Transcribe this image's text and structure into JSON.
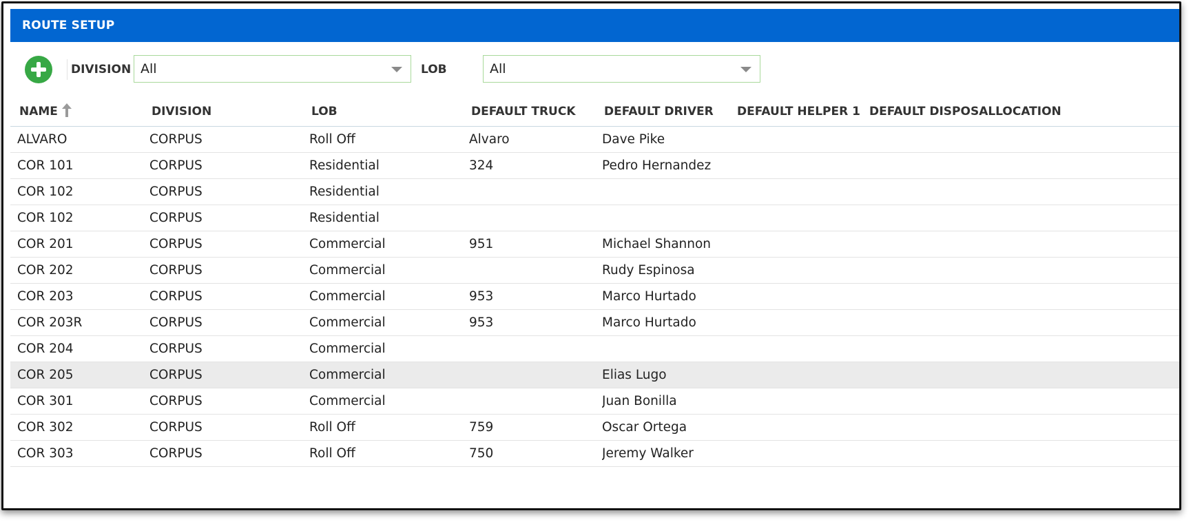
{
  "window": {
    "title": "ROUTE SETUP"
  },
  "toolbar": {
    "add_icon": "plus-circle-icon",
    "division_label": "DIVISION",
    "division_value": "All",
    "lob_label": "LOB",
    "lob_value": "All"
  },
  "colors": {
    "titlebar": "#0266d1",
    "add_button": "#37a845",
    "select_border": "#a8d99a",
    "selected_row": "#ebebeb"
  },
  "table": {
    "columns": [
      "NAME",
      "DIVISION",
      "LOB",
      "DEFAULT TRUCK",
      "DEFAULT DRIVER",
      "DEFAULT HELPER 1",
      "DEFAULT DISPOSALLOCATION"
    ],
    "sort": {
      "column": "NAME",
      "direction": "ascending",
      "icon": "sort-ascending-icon"
    },
    "selected_row_index": 9,
    "rows": [
      {
        "name": "ALVARO",
        "division": "CORPUS",
        "lob": "Roll Off",
        "truck": "Alvaro",
        "driver": "Dave Pike",
        "helper": "",
        "disposal": ""
      },
      {
        "name": "COR 101",
        "division": "CORPUS",
        "lob": "Residential",
        "truck": "324",
        "driver": "Pedro Hernandez",
        "helper": "",
        "disposal": ""
      },
      {
        "name": "COR 102",
        "division": "CORPUS",
        "lob": "Residential",
        "truck": "",
        "driver": "",
        "helper": "",
        "disposal": ""
      },
      {
        "name": "COR 102",
        "division": "CORPUS",
        "lob": "Residential",
        "truck": "",
        "driver": "",
        "helper": "",
        "disposal": ""
      },
      {
        "name": "COR 201",
        "division": "CORPUS",
        "lob": "Commercial",
        "truck": "951",
        "driver": "Michael Shannon",
        "helper": "",
        "disposal": ""
      },
      {
        "name": "COR 202",
        "division": "CORPUS",
        "lob": "Commercial",
        "truck": "",
        "driver": "Rudy Espinosa",
        "helper": "",
        "disposal": ""
      },
      {
        "name": "COR 203",
        "division": "CORPUS",
        "lob": "Commercial",
        "truck": "953",
        "driver": "Marco Hurtado",
        "helper": "",
        "disposal": ""
      },
      {
        "name": "COR 203R",
        "division": "CORPUS",
        "lob": "Commercial",
        "truck": "953",
        "driver": "Marco Hurtado",
        "helper": "",
        "disposal": ""
      },
      {
        "name": "COR 204",
        "division": "CORPUS",
        "lob": "Commercial",
        "truck": "",
        "driver": "",
        "helper": "",
        "disposal": ""
      },
      {
        "name": "COR 205",
        "division": "CORPUS",
        "lob": "Commercial",
        "truck": "",
        "driver": "Elias Lugo",
        "helper": "",
        "disposal": ""
      },
      {
        "name": "COR 301",
        "division": "CORPUS",
        "lob": "Commercial",
        "truck": "",
        "driver": "Juan Bonilla",
        "helper": "",
        "disposal": ""
      },
      {
        "name": "COR 302",
        "division": "CORPUS",
        "lob": "Roll Off",
        "truck": "759",
        "driver": "Oscar Ortega",
        "helper": "",
        "disposal": ""
      },
      {
        "name": "COR 303",
        "division": "CORPUS",
        "lob": "Roll Off",
        "truck": "750",
        "driver": "Jeremy Walker",
        "helper": "",
        "disposal": ""
      }
    ]
  }
}
